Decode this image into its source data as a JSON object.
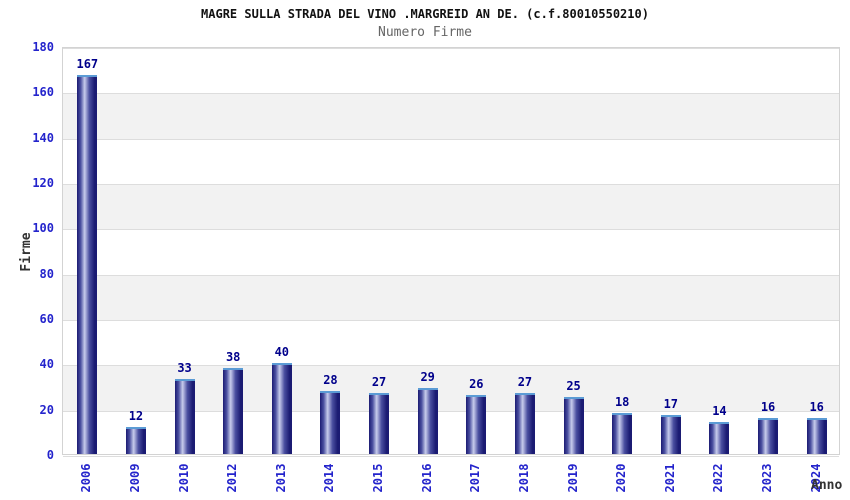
{
  "chart_data": {
    "type": "bar",
    "title": "MAGRE SULLA STRADA DEL VINO .MARGREID AN DE. (c.f.80010550210)",
    "subtitle": "Numero Firme",
    "xlabel": "Anno",
    "ylabel": "Firme",
    "categories": [
      "2006",
      "2009",
      "2010",
      "2012",
      "2013",
      "2014",
      "2015",
      "2016",
      "2017",
      "2018",
      "2019",
      "2020",
      "2021",
      "2022",
      "2023",
      "2024"
    ],
    "values": [
      167,
      12,
      33,
      38,
      40,
      28,
      27,
      29,
      26,
      27,
      25,
      18,
      17,
      14,
      16,
      16
    ],
    "ylim": [
      0,
      180
    ],
    "ytick_step": 20,
    "grid": true,
    "legend": "none",
    "colors": {
      "bar_edge_dark": "#1b1b73",
      "bar_mid": "#4a4fa0",
      "bar_highlight": "#c7ccec",
      "bar_cap": "#5b9bd5",
      "axis_tick_label": "#2424cc",
      "value_label": "#00008b",
      "band_fill": "#f2f2f2",
      "gridline": "#dddddd",
      "plot_border": "#d3d3d3",
      "title_color": "#111111",
      "subtitle_color": "#666666",
      "axis_title_color": "#333333"
    }
  }
}
